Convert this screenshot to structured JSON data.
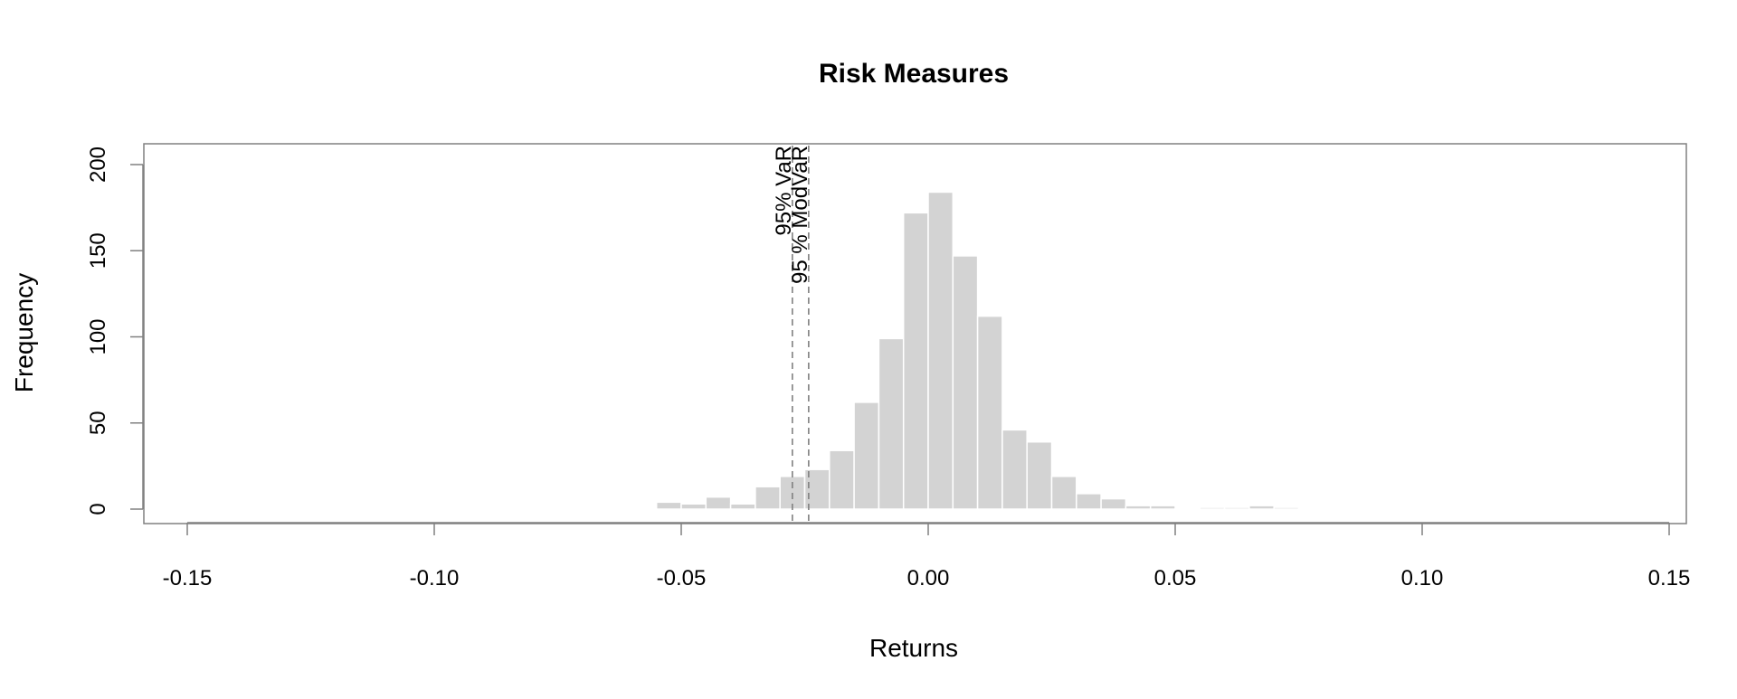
{
  "chart_data": {
    "type": "bar",
    "title": "Risk Measures",
    "xlabel": "Returns",
    "ylabel": "Frequency",
    "xlim": [
      -0.15,
      0.15
    ],
    "ylim": [
      0,
      200
    ],
    "bin_width": 0.005,
    "x_ticks": [
      "-0.15",
      "-0.10",
      "-0.05",
      "0.00",
      "0.05",
      "0.10",
      "0.15"
    ],
    "y_ticks": [
      "0",
      "50",
      "100",
      "150",
      "200"
    ],
    "bins": [
      {
        "start": -0.055,
        "end": -0.05,
        "count": 4
      },
      {
        "start": -0.05,
        "end": -0.045,
        "count": 3
      },
      {
        "start": -0.045,
        "end": -0.04,
        "count": 7
      },
      {
        "start": -0.04,
        "end": -0.035,
        "count": 3
      },
      {
        "start": -0.035,
        "end": -0.03,
        "count": 13
      },
      {
        "start": -0.03,
        "end": -0.025,
        "count": 19
      },
      {
        "start": -0.025,
        "end": -0.02,
        "count": 23
      },
      {
        "start": -0.02,
        "end": -0.015,
        "count": 34
      },
      {
        "start": -0.015,
        "end": -0.01,
        "count": 62
      },
      {
        "start": -0.01,
        "end": -0.005,
        "count": 99
      },
      {
        "start": -0.005,
        "end": 0.0,
        "count": 172
      },
      {
        "start": 0.0,
        "end": 0.005,
        "count": 184
      },
      {
        "start": 0.005,
        "end": 0.01,
        "count": 147
      },
      {
        "start": 0.01,
        "end": 0.015,
        "count": 112
      },
      {
        "start": 0.015,
        "end": 0.02,
        "count": 46
      },
      {
        "start": 0.02,
        "end": 0.025,
        "count": 39
      },
      {
        "start": 0.025,
        "end": 0.03,
        "count": 19
      },
      {
        "start": 0.03,
        "end": 0.035,
        "count": 9
      },
      {
        "start": 0.035,
        "end": 0.04,
        "count": 6
      },
      {
        "start": 0.04,
        "end": 0.045,
        "count": 2
      },
      {
        "start": 0.045,
        "end": 0.05,
        "count": 2
      },
      {
        "start": 0.05,
        "end": 0.055,
        "count": 0
      },
      {
        "start": 0.055,
        "end": 0.06,
        "count": 1
      },
      {
        "start": 0.06,
        "end": 0.065,
        "count": 1
      },
      {
        "start": 0.065,
        "end": 0.07,
        "count": 2
      },
      {
        "start": 0.07,
        "end": 0.075,
        "count": 1
      }
    ],
    "annotations": [
      {
        "label": "95% VaR",
        "x": -0.0275,
        "line_style": "dashed"
      },
      {
        "label": "95 % ModVaR",
        "x": -0.0242,
        "line_style": "dashed"
      }
    ],
    "bar_color": "#d3d3d3",
    "bar_border_color": "#ffffff",
    "line_color": "#808080",
    "frame_color": "#808080",
    "grid": false,
    "legend": "none"
  }
}
